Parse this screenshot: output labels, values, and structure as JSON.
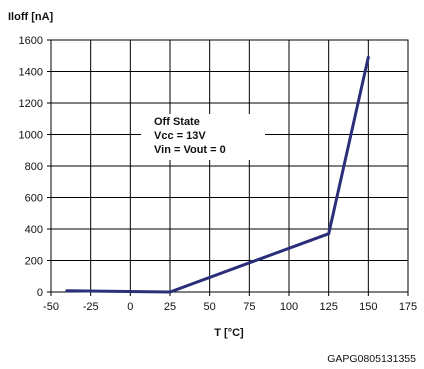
{
  "chart_data": {
    "type": "line",
    "ylabel": "Iloff [nA]",
    "xlabel": "T [°C]",
    "xlim": [
      -50,
      175
    ],
    "ylim": [
      0,
      1600
    ],
    "x_ticks": [
      -50,
      -25,
      0,
      25,
      50,
      75,
      100,
      125,
      150,
      175
    ],
    "y_ticks": [
      0,
      200,
      400,
      600,
      800,
      1000,
      1200,
      1400,
      1600
    ],
    "grid": true,
    "series": [
      {
        "color": "#2b2f7a",
        "x": [
          -40,
          25,
          125,
          150
        ],
        "y": [
          8,
          0,
          370,
          1490
        ]
      }
    ],
    "annotation_lines": [
      "Off State",
      "Vcc = 13V",
      "Vin = Vout = 0"
    ]
  },
  "footer_code": "GAPG0805131355"
}
